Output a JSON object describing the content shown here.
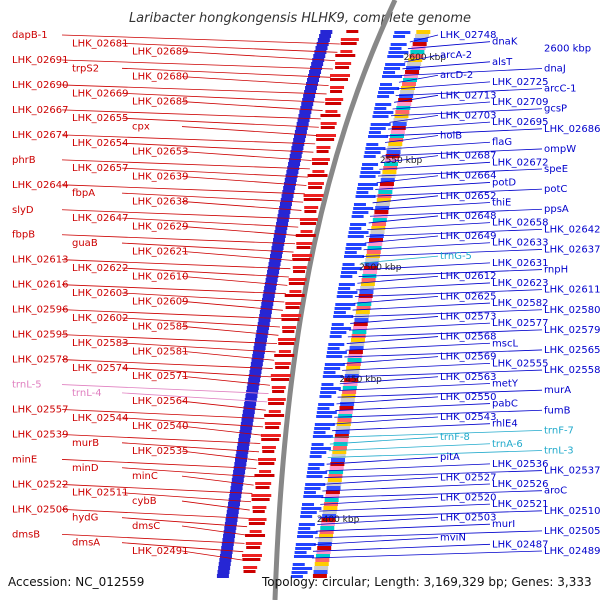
{
  "map": {
    "title": "Laribacter hongkongensis HLHK9, complete genome",
    "accession": "Accession: NC_012559",
    "summary": "Topology: circular; Length: 3,169,329 bp; Genes: 3,333"
  },
  "ticks": [
    "2600 kbp",
    "2550 kbp",
    "2500 kbp",
    "2450 kbp",
    "2400 kbp"
  ],
  "left_labels": [
    "dapB-1",
    "LHK_02681",
    "LHK_02689",
    "LHK_02691",
    "trpS2",
    "LHK_02680",
    "LHK_02690",
    "LHK_02669",
    "LHK_02685",
    "LHK_02667",
    "LHK_02655",
    "cpx",
    "LHK_02674",
    "LHK_02654",
    "LHK_02653",
    "phrB",
    "LHK_02657",
    "LHK_02639",
    "LHK_02644",
    "fbpA",
    "LHK_02638",
    "slyD",
    "LHK_02647",
    "LHK_02629",
    "fbpB",
    "guaB",
    "LHK_02621",
    "LHK_02613",
    "LHK_02622",
    "LHK_02610",
    "LHK_02616",
    "LHK_02603",
    "LHK_02609",
    "LHK_02596",
    "LHK_02602",
    "LHK_02585",
    "LHK_02595",
    "LHK_02583",
    "LHK_02581",
    "LHK_02578",
    "LHK_02574",
    "LHK_02571",
    "trnL-5",
    "trnL-4",
    "LHK_02564",
    "LHK_02557",
    "LHK_02544",
    "LHK_02540",
    "LHK_02539",
    "murB",
    "LHK_02535",
    "minE",
    "minD",
    "minC",
    "LHK_02522",
    "LHK_02511",
    "cybB",
    "LHK_02506",
    "hydG",
    "dmsC",
    "dmsB",
    "dmsA",
    "LHK_02491"
  ],
  "right_labels": [
    "LHK_02748",
    "dnaK",
    "2600 kbp",
    "arcA-2",
    "alsT",
    "dnaJ",
    "arcD-2",
    "LHK_02725",
    "arcC-1",
    "LHK_02713",
    "LHK_02709",
    "gcsP",
    "LHK_02703",
    "LHK_02695",
    "LHK_02686",
    "holB",
    "flaG",
    "ompW",
    "LHK_02687",
    "LHK_02672",
    "speE",
    "LHK_02664",
    "potD",
    "potC",
    "LHK_02652",
    "thiE",
    "ppsA",
    "LHK_02648",
    "LHK_02658",
    "LHK_02642",
    "LHK_02649",
    "LHK_02633",
    "LHK_02637",
    "trnG-5",
    "LHK_02631",
    "rnpH",
    "LHK_02612",
    "LHK_02623",
    "LHK_02611",
    "LHK_02625",
    "LHK_02582",
    "LHK_02580",
    "LHK_02573",
    "LHK_02577",
    "LHK_02579",
    "LHK_02568",
    "mscL",
    "LHK_02565",
    "LHK_02569",
    "LHK_02555",
    "LHK_02558",
    "LHK_02563",
    "metY",
    "murA",
    "LHK_02550",
    "pabC",
    "fumB",
    "LHK_02543",
    "rhlE4",
    "trnF-7",
    "trnF-8",
    "trnA-6",
    "trnL-3",
    "pitA",
    "LHK_02536",
    "LHK_02537",
    "LHK_02527",
    "LHK_02526",
    "aroC",
    "LHK_02520",
    "LHK_02521",
    "LHK_02510",
    "LHK_02503",
    "murI",
    "LHK_02505",
    "mviN",
    "LHK_02487",
    "LHK_02489"
  ]
}
